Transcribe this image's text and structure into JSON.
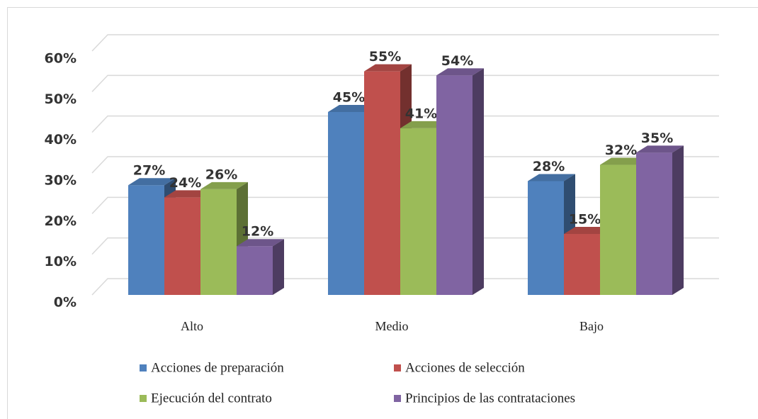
{
  "chart_data": {
    "type": "bar3d",
    "categories": [
      "Alto",
      "Medio",
      "Bajo"
    ],
    "series": [
      {
        "name": "Acciones de preparación",
        "color": "#4f81bd",
        "values": [
          27,
          45,
          28
        ],
        "value_labels": [
          "27%",
          "45%",
          "28%"
        ]
      },
      {
        "name": "Acciones de selección",
        "color": "#c0504d",
        "values": [
          24,
          55,
          15
        ],
        "value_labels": [
          "24%",
          "55%",
          "15%"
        ]
      },
      {
        "name": "Ejecución del contrato",
        "color": "#9bbb59",
        "values": [
          26,
          41,
          32
        ],
        "value_labels": [
          "26%",
          "41%",
          "32%"
        ]
      },
      {
        "name": "Principios de las contrataciones",
        "color": "#8064a2",
        "values": [
          12,
          54,
          35
        ],
        "value_labels": [
          "12%",
          "54%",
          "35%"
        ]
      }
    ],
    "ylim": [
      0,
      60
    ],
    "yticks": [
      {
        "value": 0,
        "label": "0%"
      },
      {
        "value": 10,
        "label": "10%"
      },
      {
        "value": 20,
        "label": "20%"
      },
      {
        "value": 30,
        "label": "30%"
      },
      {
        "value": 40,
        "label": "40%"
      },
      {
        "value": 50,
        "label": "50%"
      },
      {
        "value": 60,
        "label": "60%"
      }
    ],
    "grid": true
  }
}
